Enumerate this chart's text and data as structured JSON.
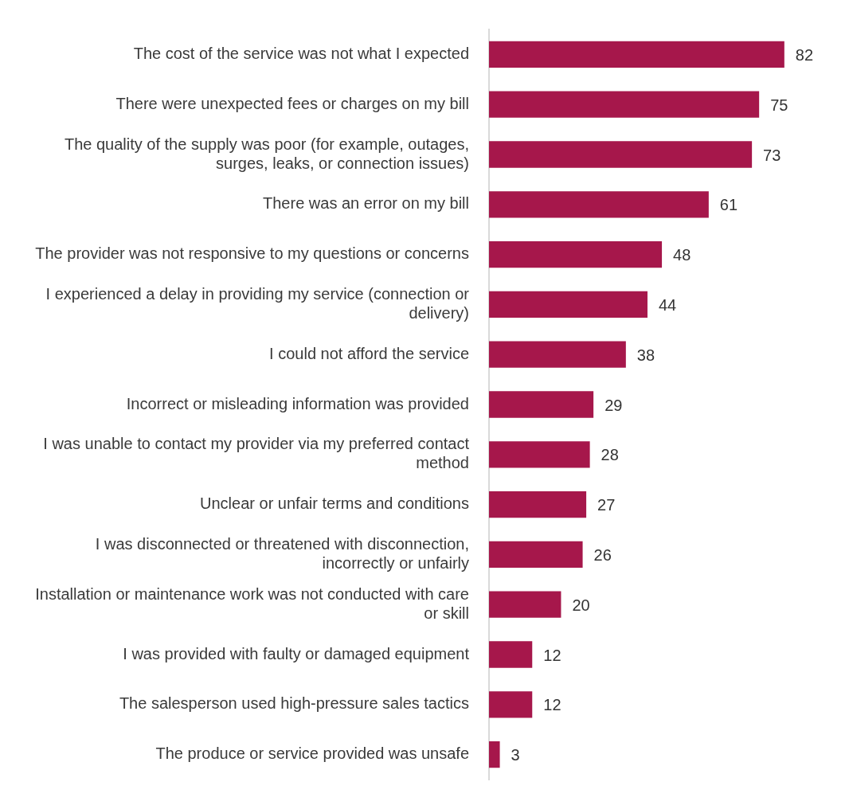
{
  "chart_data": {
    "type": "bar",
    "orientation": "horizontal",
    "categories": [
      "The cost of the service was not what I expected",
      "There were unexpected fees or charges on my bill",
      "The quality of the supply was poor (for example, outages, surges, leaks, or connection issues)",
      "There was an error on my bill",
      "The provider was not responsive to my questions or concerns",
      "I experienced a delay in providing my service (connection or delivery)",
      "I could not afford the service",
      "Incorrect or misleading information was provided",
      "I was unable to contact my provider via my preferred contact method",
      "Unclear or unfair terms and conditions",
      "I was disconnected or threatened with disconnection, incorrectly or unfairly",
      "Installation or maintenance work was not conducted with care or skill",
      "I was provided with faulty or damaged equipment",
      "The salesperson used high-pressure sales tactics",
      "The produce or service provided was unsafe"
    ],
    "values": [
      82,
      75,
      73,
      61,
      48,
      44,
      38,
      29,
      28,
      27,
      26,
      20,
      12,
      12,
      3
    ],
    "color": "#a6174b",
    "tick_labels": "y",
    "legend": false,
    "data_labels": true
  }
}
